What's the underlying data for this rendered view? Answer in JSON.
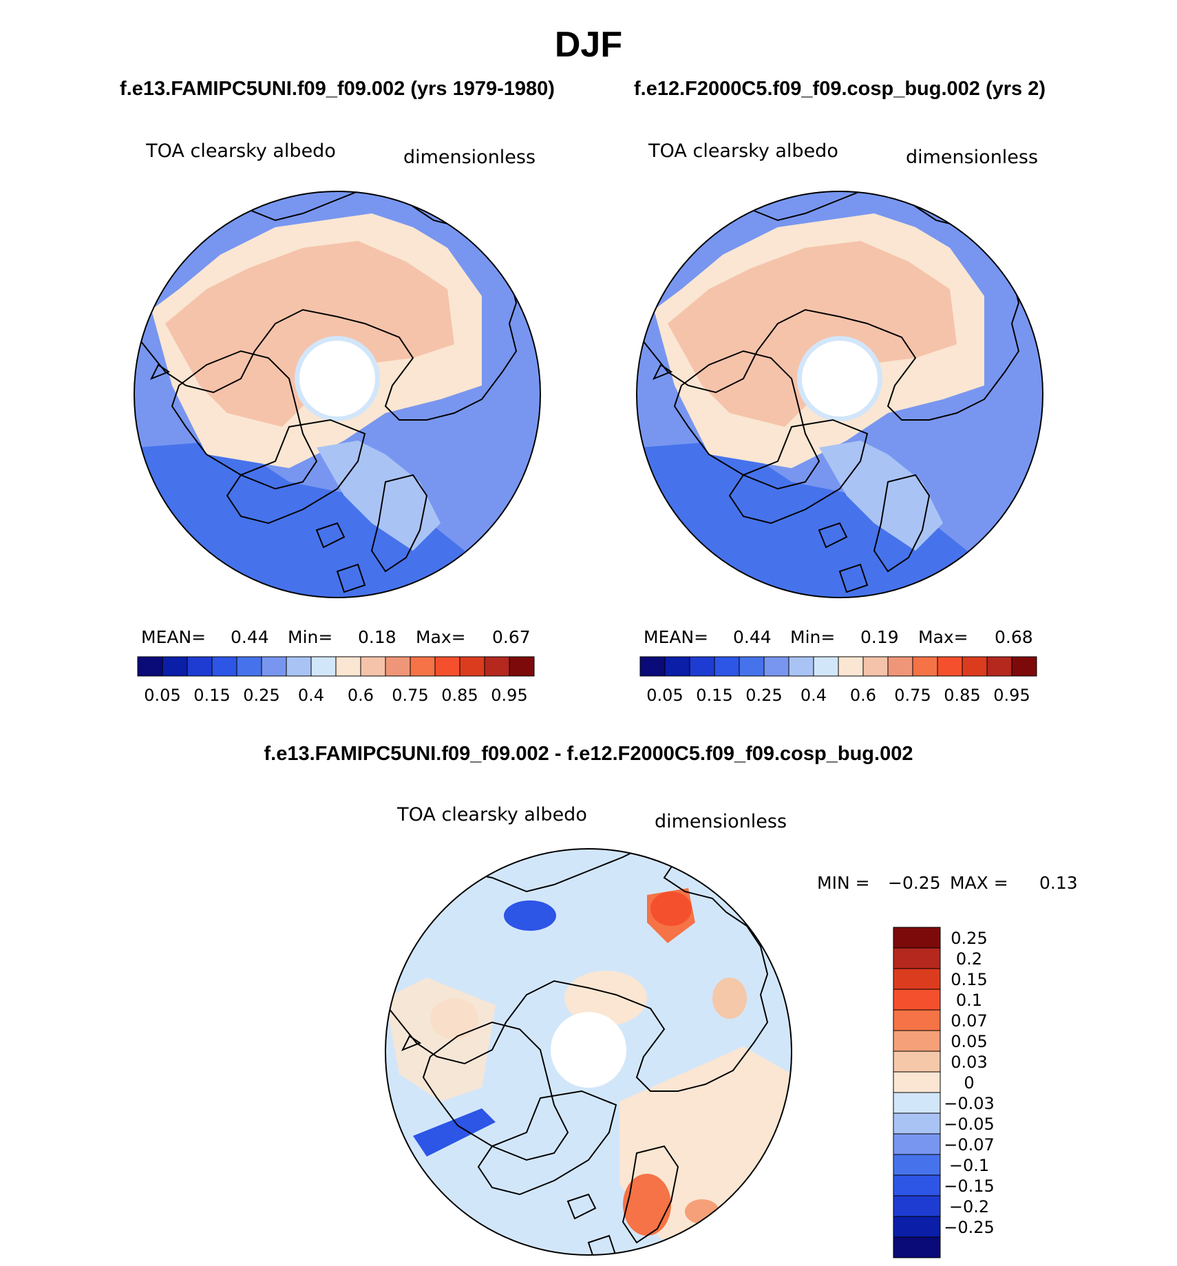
{
  "figure": {
    "season": "DJF",
    "run_a_title": "f.e13.FAMIPC5UNI.f09_f09.002 (yrs 1979-1980)",
    "run_b_title": "f.e12.F2000C5.f09_f09.cosp_bug.002 (yrs 2)",
    "diff_title": "f.e13.FAMIPC5UNI.f09_f09.002 - f.e12.F2000C5.f09_f09.cosp_bug.002"
  },
  "panels": [
    {
      "variable": "TOA clearsky albedo",
      "units": "dimensionless",
      "stats": {
        "mean_label": "MEAN=",
        "mean": "0.44",
        "min_label": "Min=",
        "min": "0.18",
        "max_label": "Max=",
        "max": "0.67"
      }
    },
    {
      "variable": "TOA clearsky albedo",
      "units": "dimensionless",
      "stats": {
        "mean_label": "MEAN=",
        "mean": "0.44",
        "min_label": "Min=",
        "min": "0.19",
        "max_label": "Max=",
        "max": "0.68"
      }
    }
  ],
  "diff_panel": {
    "variable": "TOA clearsky albedo",
    "units": "dimensionless",
    "stats": {
      "min_label": "MIN =",
      "min": "−0.25",
      "max_label": "MAX =",
      "max": "0.13"
    }
  },
  "colorbar_main": {
    "colors": [
      "#0a0a78",
      "#0a1ea8",
      "#1e3cd2",
      "#2d55e6",
      "#4673eb",
      "#7896f0",
      "#aac3f5",
      "#d2e6fa",
      "#fae6d2",
      "#f5c3aa",
      "#f09678",
      "#f57346",
      "#f5502d",
      "#dc3c1e",
      "#b4281e",
      "#7d0a0a"
    ],
    "tick_labels": [
      "0.05",
      "0.15",
      "0.25",
      "0.4",
      "0.6",
      "0.75",
      "0.85",
      "0.95"
    ]
  },
  "colorbar_diff": {
    "colors": [
      "#7d0a0a",
      "#b4281e",
      "#dc3c1e",
      "#f5502d",
      "#f57346",
      "#f5a078",
      "#f5c8aa",
      "#fae6d2",
      "#d2e6fa",
      "#aac3f5",
      "#7896f0",
      "#4673eb",
      "#2d55e6",
      "#1e3cd2",
      "#0a1ea8",
      "#0a0a78"
    ],
    "tick_labels": [
      "0.25",
      "0.2",
      "0.15",
      "0.1",
      "0.07",
      "0.05",
      "0.03",
      "0",
      "−0.03",
      "−0.05",
      "−0.07",
      "−0.1",
      "−0.15",
      "−0.2",
      "−0.25"
    ]
  }
}
